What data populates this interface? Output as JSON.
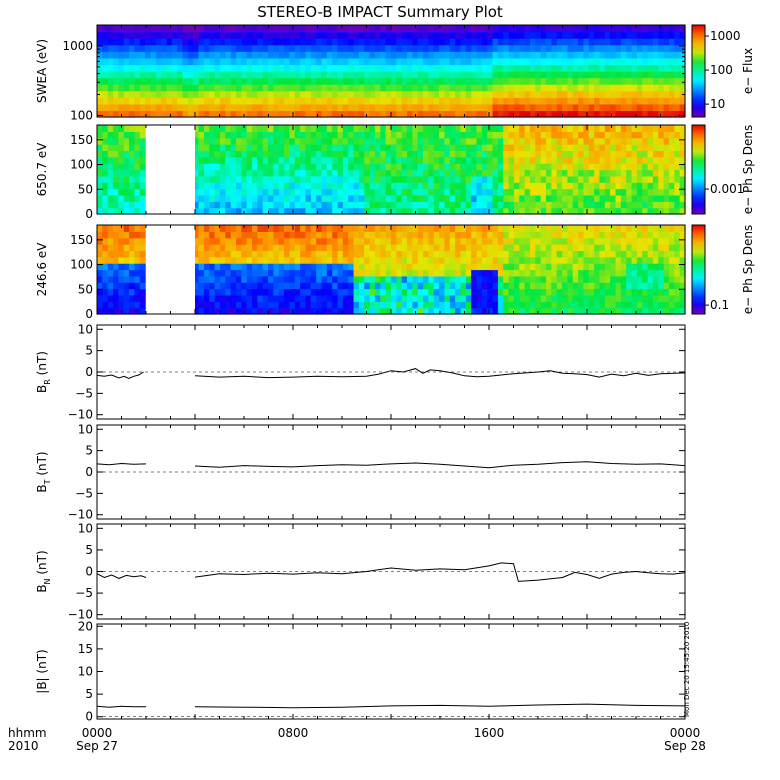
{
  "chart_data": {
    "type": "line",
    "title": "STEREO-B IMPACT Summary Plot",
    "time_axis": {
      "row1_label": "hhmm",
      "row2_label": "2010",
      "range_hours": [
        0,
        24
      ],
      "ticks": [
        {
          "hour": 0,
          "label": "0000",
          "sub": "Sep 27"
        },
        {
          "hour": 8,
          "label": "0800",
          "sub": ""
        },
        {
          "hour": 16,
          "label": "1600",
          "sub": ""
        },
        {
          "hour": 24,
          "label": "0000",
          "sub": "Sep 28"
        }
      ]
    },
    "data_gap_hours": [
      2.0,
      4.0
    ],
    "panels": [
      {
        "id": "swea",
        "type": "heatmap",
        "ylabel": "SWEA (eV)",
        "yscale": "log",
        "ylim": [
          95,
          2000
        ],
        "yticks": [
          {
            "value": 100,
            "label": "100"
          },
          {
            "value": 1000,
            "label": "1000"
          }
        ],
        "colorbar": {
          "label": "e− Flux",
          "ticks": [
            "1000",
            "100",
            "10"
          ],
          "scale": "log"
        },
        "has_gap": false
      },
      {
        "id": "pad650",
        "type": "heatmap",
        "ylabel": "650.7 eV",
        "ylim": [
          0,
          180
        ],
        "yticks": [
          {
            "value": 0,
            "label": "0"
          },
          {
            "value": 50,
            "label": "50"
          },
          {
            "value": 100,
            "label": "100"
          },
          {
            "value": 150,
            "label": "150"
          }
        ],
        "colorbar": {
          "label": "e− Ph Sp Dens",
          "ticks": [
            "0.001"
          ],
          "scale": "log"
        },
        "has_gap": true
      },
      {
        "id": "pad246",
        "type": "heatmap",
        "ylabel": "246.6 eV",
        "ylim": [
          0,
          180
        ],
        "yticks": [
          {
            "value": 0,
            "label": "0"
          },
          {
            "value": 50,
            "label": "50"
          },
          {
            "value": 100,
            "label": "100"
          },
          {
            "value": 150,
            "label": "150"
          }
        ],
        "colorbar": {
          "label": "e− Ph Sp Dens",
          "ticks": [
            "0.1"
          ],
          "scale": "log"
        },
        "has_gap": true
      },
      {
        "id": "br",
        "type": "line",
        "ylabel": "B",
        "ylabel_sub": "R",
        "ylabel_unit": " (nT)",
        "ylim": [
          -11,
          11
        ],
        "yticks": [
          {
            "value": -10,
            "label": "−10"
          },
          {
            "value": -5,
            "label": "−5"
          },
          {
            "value": 0,
            "label": "0"
          },
          {
            "value": 5,
            "label": "5"
          },
          {
            "value": 10,
            "label": "10"
          }
        ],
        "segments": [
          {
            "x": [
              0.0,
              0.3,
              0.6,
              0.9,
              1.1,
              1.3,
              1.5,
              1.7,
              1.9
            ],
            "y": [
              -0.8,
              -1.0,
              -0.7,
              -1.4,
              -1.0,
              -1.5,
              -1.0,
              -0.7,
              0.0
            ]
          },
          {
            "x": [
              4.0,
              5.0,
              6.0,
              7.0,
              8.0,
              9.0,
              10.0,
              11.0,
              11.5,
              12.0,
              12.5,
              13.0,
              13.3,
              13.6,
              14.0,
              14.5,
              15.0,
              15.5,
              16.0,
              16.5,
              17.0,
              17.5,
              18.0,
              18.5,
              19.0,
              19.5,
              20.0,
              20.5,
              21.0,
              21.5,
              22.0,
              22.5,
              23.0,
              24.0
            ],
            "y": [
              -0.9,
              -1.2,
              -1.0,
              -1.3,
              -1.2,
              -1.0,
              -1.1,
              -1.0,
              -0.5,
              0.3,
              0.0,
              0.8,
              -0.3,
              0.5,
              0.3,
              -0.2,
              -0.9,
              -1.1,
              -1.0,
              -0.7,
              -0.4,
              -0.2,
              0.0,
              0.3,
              -0.3,
              -0.4,
              -0.6,
              -1.2,
              -0.5,
              -0.9,
              -0.3,
              -0.8,
              -0.4,
              -0.2
            ]
          }
        ]
      },
      {
        "id": "bt",
        "type": "line",
        "ylabel": "B",
        "ylabel_sub": "T",
        "ylabel_unit": " (nT)",
        "ylim": [
          -11,
          11
        ],
        "yticks": [
          {
            "value": -10,
            "label": "−10"
          },
          {
            "value": -5,
            "label": "−5"
          },
          {
            "value": 0,
            "label": "0"
          },
          {
            "value": 5,
            "label": "5"
          },
          {
            "value": 10,
            "label": "10"
          }
        ],
        "segments": [
          {
            "x": [
              0.0,
              0.5,
              1.0,
              1.5,
              2.0
            ],
            "y": [
              1.9,
              1.7,
              2.0,
              1.8,
              1.9
            ]
          },
          {
            "x": [
              4.0,
              5.0,
              6.0,
              7.0,
              8.0,
              9.0,
              10.0,
              11.0,
              12.0,
              13.0,
              14.0,
              15.0,
              16.0,
              17.0,
              18.0,
              19.0,
              20.0,
              21.0,
              22.0,
              23.0,
              24.0
            ],
            "y": [
              1.4,
              1.1,
              1.5,
              1.3,
              1.2,
              1.5,
              1.7,
              1.6,
              1.9,
              2.1,
              1.8,
              1.4,
              1.0,
              1.6,
              1.8,
              2.2,
              2.4,
              2.0,
              1.8,
              1.9,
              1.5
            ]
          }
        ]
      },
      {
        "id": "bn",
        "type": "line",
        "ylabel": "B",
        "ylabel_sub": "N",
        "ylabel_unit": " (nT)",
        "ylim": [
          -11,
          11
        ],
        "yticks": [
          {
            "value": -10,
            "label": "−10"
          },
          {
            "value": -5,
            "label": "−5"
          },
          {
            "value": 0,
            "label": "0"
          },
          {
            "value": 5,
            "label": "5"
          },
          {
            "value": 10,
            "label": "10"
          }
        ],
        "segments": [
          {
            "x": [
              0.0,
              0.3,
              0.6,
              0.9,
              1.2,
              1.5,
              1.8,
              2.0
            ],
            "y": [
              -0.5,
              -1.4,
              -0.8,
              -1.6,
              -0.9,
              -1.2,
              -1.0,
              -1.4
            ]
          },
          {
            "x": [
              4.0,
              5.0,
              6.0,
              7.0,
              8.0,
              9.0,
              10.0,
              11.0,
              12.0,
              13.0,
              14.0,
              15.0,
              16.0,
              16.5,
              17.0,
              17.2,
              18.0,
              19.0,
              19.5,
              20.0,
              20.5,
              21.0,
              21.5,
              22.0,
              22.5,
              23.0,
              23.5,
              24.0
            ],
            "y": [
              -1.3,
              -0.5,
              -0.7,
              -0.4,
              -0.6,
              -0.3,
              -0.5,
              0.0,
              0.8,
              0.3,
              0.6,
              0.4,
              1.3,
              2.0,
              1.8,
              -2.3,
              -2.0,
              -1.4,
              -0.2,
              -0.7,
              -1.6,
              -0.6,
              -0.2,
              0.0,
              -0.3,
              -0.5,
              -0.6,
              -0.3
            ]
          }
        ]
      },
      {
        "id": "bmag",
        "type": "line",
        "ylabel": "|B| (nT)",
        "ylim": [
          -0.5,
          20.5
        ],
        "yticks": [
          {
            "value": 0,
            "label": "0"
          },
          {
            "value": 5,
            "label": "5"
          },
          {
            "value": 10,
            "label": "10"
          },
          {
            "value": 15,
            "label": "15"
          },
          {
            "value": 20,
            "label": "20"
          }
        ],
        "stamp": "Mon Dec 20 15:45:20 2010",
        "segments": [
          {
            "x": [
              0.0,
              0.5,
              1.0,
              1.5,
              2.0
            ],
            "y": [
              2.3,
              2.1,
              2.3,
              2.2,
              2.2
            ]
          },
          {
            "x": [
              4.0,
              6.0,
              8.0,
              10.0,
              12.0,
              14.0,
              16.0,
              18.0,
              20.0,
              22.0,
              24.0
            ],
            "y": [
              2.2,
              2.1,
              2.0,
              2.1,
              2.4,
              2.5,
              2.3,
              2.6,
              2.8,
              2.5,
              2.4
            ]
          }
        ]
      }
    ]
  }
}
